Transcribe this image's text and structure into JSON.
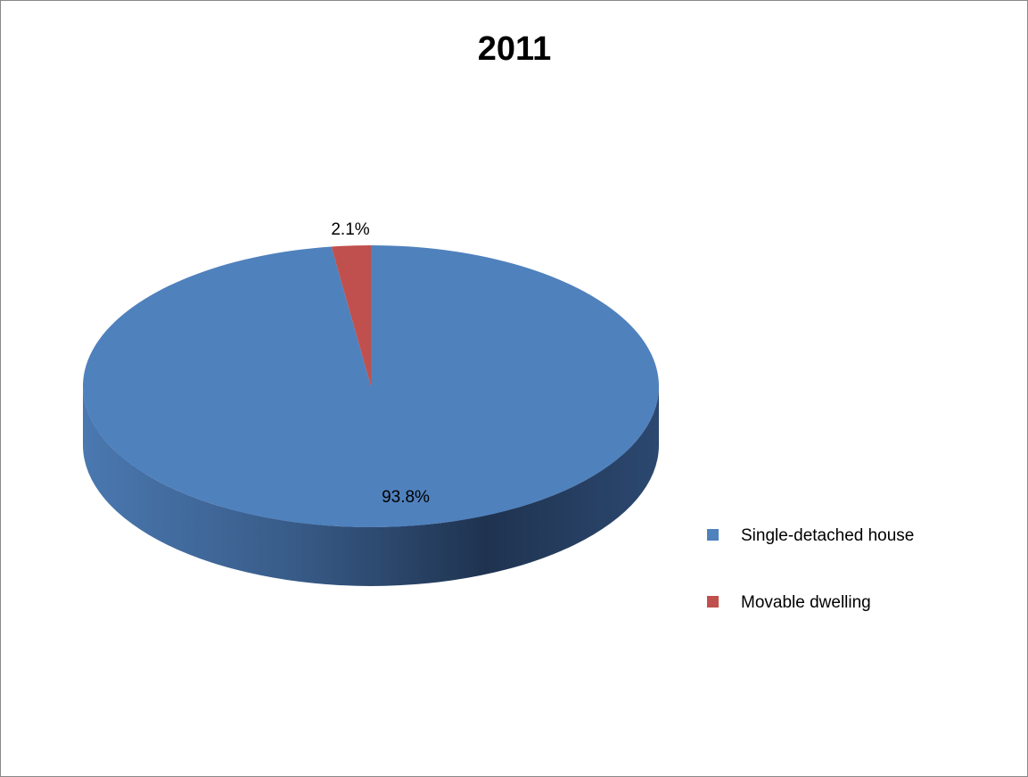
{
  "chart_data": {
    "type": "pie",
    "title": "2011",
    "categories": [
      "Single-detached house",
      "Movable dwelling"
    ],
    "values": [
      93.8,
      2.1
    ],
    "data_labels": [
      "93.8%",
      "2.1%"
    ],
    "colors": [
      "#4F81BD",
      "#C0504D"
    ],
    "style": "3d",
    "legend_position": "right"
  }
}
